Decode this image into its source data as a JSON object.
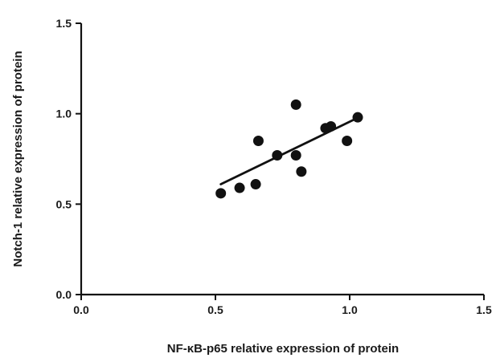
{
  "chart_data": {
    "type": "scatter",
    "title": "",
    "xlabel": "NF-κB-p65 relative expression of protein",
    "ylabel": "Notch-1 relative expression of protein",
    "xlim": [
      0.0,
      1.5
    ],
    "ylim": [
      0.0,
      1.5
    ],
    "xticks": [
      "0.0",
      "0.5",
      "1.0",
      "1.5"
    ],
    "yticks": [
      "0.0",
      "0.5",
      "1.0",
      "1.5"
    ],
    "grid": false,
    "legend": "none",
    "point_color": "#111111",
    "line_color": "#111111",
    "points": [
      {
        "x": 0.52,
        "y": 0.56
      },
      {
        "x": 0.59,
        "y": 0.59
      },
      {
        "x": 0.65,
        "y": 0.61
      },
      {
        "x": 0.66,
        "y": 0.85
      },
      {
        "x": 0.73,
        "y": 0.77
      },
      {
        "x": 0.8,
        "y": 1.05
      },
      {
        "x": 0.8,
        "y": 0.77
      },
      {
        "x": 0.82,
        "y": 0.68
      },
      {
        "x": 0.91,
        "y": 0.92
      },
      {
        "x": 0.93,
        "y": 0.93
      },
      {
        "x": 0.99,
        "y": 0.85
      },
      {
        "x": 1.03,
        "y": 0.98
      }
    ],
    "trendline": {
      "x": [
        0.52,
        1.02
      ],
      "y": [
        0.61,
        0.97
      ]
    }
  }
}
